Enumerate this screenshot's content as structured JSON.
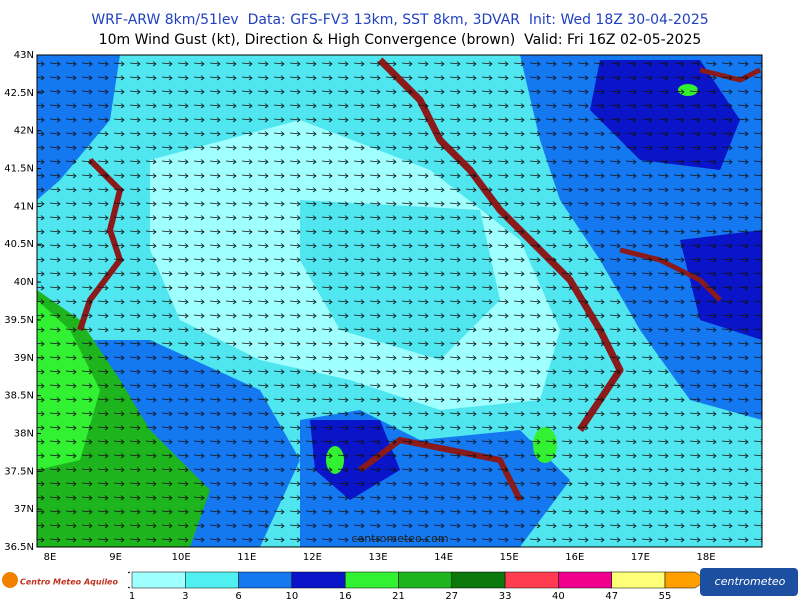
{
  "header": {
    "line1": "WRF-ARW 8km/51lev  Data: GFS-FV3 13km, SST 8km, 3DVAR  Init: Wed 18Z 30-04-2025",
    "line2": "10m Wind Gust (kt), Direction & High Convergence (brown)  Valid: Fri 16Z 02-05-2025"
  },
  "axes": {
    "lat_labels": [
      "43N",
      "42.5N",
      "42N",
      "41.5N",
      "41N",
      "40.5N",
      "40N",
      "39.5N",
      "39N",
      "38.5N",
      "38N",
      "37.5N",
      "37N",
      "36.5N"
    ],
    "lon_labels": [
      "8E",
      "9E",
      "10E",
      "11E",
      "12E",
      "13E",
      "14E",
      "15E",
      "16E",
      "17E",
      "18E"
    ]
  },
  "map": {
    "watermark": "centrometeo.com"
  },
  "legend": {
    "levels": [
      "1",
      "3",
      "6",
      "10",
      "16",
      "21",
      "27",
      "33",
      "40",
      "47",
      "55"
    ],
    "colors": [
      "#a0ffff",
      "#50f0f0",
      "#1478f0",
      "#0a14c8",
      "#32f032",
      "#1eb41e",
      "#0a780a",
      "#ff3c50",
      "#f0008c",
      "#ffff78",
      "#ffa000"
    ]
  },
  "logos": {
    "left": "Centro Meteo Aquileo",
    "right": "centrometeo"
  }
}
